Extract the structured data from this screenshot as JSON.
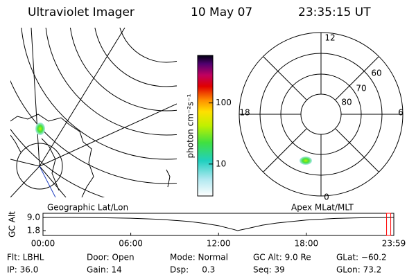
{
  "header": {
    "title": "Ultraviolet Imager",
    "date": "10 May 07",
    "time": "23:35:15 UT"
  },
  "geo_map": {
    "label": "Geographic Lat/Lon"
  },
  "colorbar": {
    "label": "photon cm⁻²s⁻¹",
    "lim": [
      3,
      600
    ],
    "ticks": [
      10,
      100
    ],
    "log": true
  },
  "polar_plot": {
    "label": "Apex MLat/MLT",
    "mlt_labels": {
      "top": "12",
      "right": "6",
      "bottom": "0",
      "left": "18"
    },
    "lat_labels": [
      "60",
      "70",
      "80"
    ]
  },
  "chart_data": {
    "type": "line",
    "ylabel": "GC Alt",
    "x": [
      0,
      2,
      4,
      6,
      8,
      10,
      11,
      12,
      13,
      13.3,
      14,
      15,
      16,
      18,
      20,
      22,
      23.98
    ],
    "values": [
      9.0,
      9.0,
      8.9,
      8.6,
      8.0,
      6.8,
      5.8,
      4.5,
      2.5,
      1.8,
      3.0,
      4.8,
      6.0,
      7.6,
      8.5,
      8.9,
      9.0
    ],
    "color": "#000000",
    "xlim": [
      0,
      23.98
    ],
    "xticks": [
      {
        "value": 0,
        "label": "00:00"
      },
      {
        "value": 6,
        "label": "06:00"
      },
      {
        "value": 12,
        "label": "12:00"
      },
      {
        "value": 18,
        "label": "18:00"
      },
      {
        "value": 23.98,
        "label": "23:59"
      }
    ],
    "ylim": [
      -0.85,
      11.3
    ],
    "yticks": [
      {
        "value": 9.0,
        "label": "9.0"
      },
      {
        "value": 1.8,
        "label": "1.8"
      }
    ],
    "marker_x": 23.58,
    "marker_color": "#ff0000"
  },
  "info": [
    [
      "Flt: LBHL",
      "Door: Open",
      "Mode: Normal",
      "GC Alt: 9.0 Re",
      "GLat: −60.2"
    ],
    [
      "IP: 36.0",
      "Gain: 14",
      "Dsp:     0.3",
      "Seq: 39",
      "GLon: 73.2"
    ]
  ]
}
